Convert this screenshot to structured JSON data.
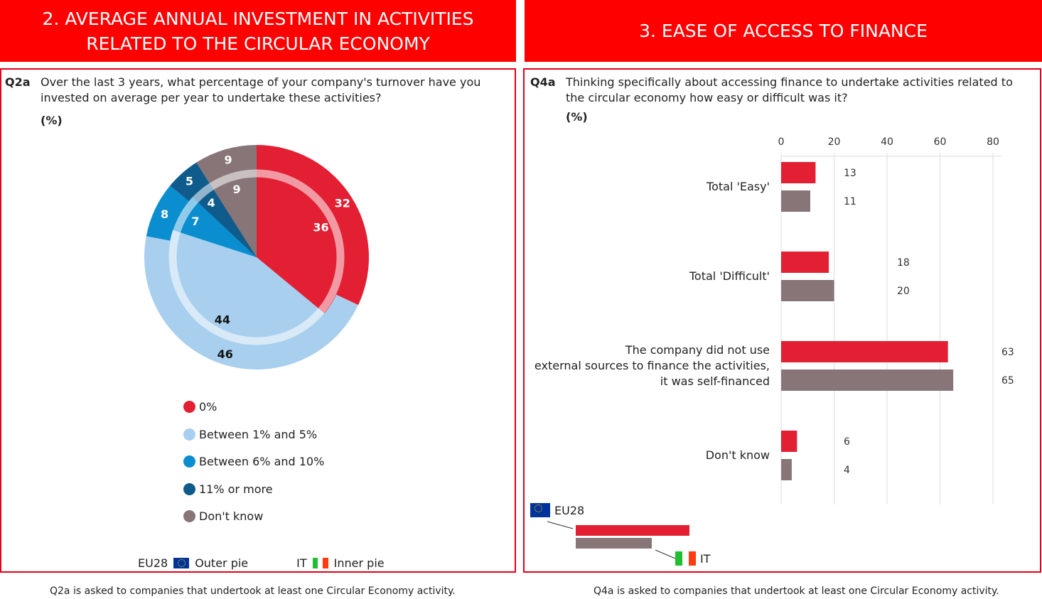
{
  "left": {
    "header": "2. AVERAGE ANNUAL INVESTMENT IN ACTIVITIES RELATED TO THE CIRCULAR ECONOMY",
    "header_l1": "2. AVERAGE ANNUAL INVESTMENT IN ACTIVITIES",
    "header_l2": "RELATED TO THE CIRCULAR ECONOMY",
    "qid": "Q2a",
    "question": "Over the last 3 years, what percentage of your company's turnover have you invested on average per year to undertake these activities?",
    "unit": "(%)",
    "eu_label": "EU28",
    "outer_label": "Outer pie",
    "it_label": "IT",
    "inner_label": "Inner pie",
    "footnote": "Q2a is asked to companies that undertook at least one Circular Economy activity."
  },
  "right": {
    "header": "3. EASE OF ACCESS TO FINANCE",
    "qid": "Q4a",
    "question": "Thinking specifically about accessing finance to undertake activities related to the circular economy how easy or difficult was it?",
    "unit": "(%)",
    "eu_label": "EU28",
    "it_label": "IT",
    "footnote": "Q4a is asked to companies that undertook at least one Circular Economy activity."
  },
  "chart_data": [
    {
      "type": "pie",
      "title": "Q2a",
      "categories": [
        "0%",
        "Between 1% and 5%",
        "Between 6% and 10%",
        "11% or more",
        "Don't know"
      ],
      "colors": [
        "#e31f33",
        "#a8cfee",
        "#0a8ecf",
        "#0f5c8c",
        "#877577"
      ],
      "label_colors": [
        "#fff",
        "#111",
        "#fff",
        "#fff",
        "#fff"
      ],
      "series": [
        {
          "name": "EU28",
          "ring": "outer",
          "values": [
            32,
            46,
            8,
            5,
            9
          ]
        },
        {
          "name": "IT",
          "ring": "inner",
          "values": [
            36,
            44,
            7,
            4,
            9
          ]
        }
      ]
    },
    {
      "type": "bar",
      "orientation": "horizontal",
      "title": "Q4a",
      "categories": [
        "Total 'Easy'",
        "Total 'Difficult'",
        "The company did not use external sources to finance the activities, it was self-financed",
        "Don't know"
      ],
      "category_lines": [
        [
          "Total 'Easy'"
        ],
        [
          "Total 'Difficult'"
        ],
        [
          "The company did not use",
          "external sources to finance the activities,",
          "it was self-financed"
        ],
        [
          "Don't know"
        ]
      ],
      "xlim": [
        0,
        80
      ],
      "xticks": [
        0,
        20,
        40,
        60,
        80
      ],
      "grid": true,
      "series": [
        {
          "name": "EU28",
          "color": "#e31f33",
          "values": [
            13,
            18,
            63,
            6
          ]
        },
        {
          "name": "IT",
          "color": "#877577",
          "values": [
            11,
            20,
            65,
            4
          ]
        }
      ]
    }
  ]
}
